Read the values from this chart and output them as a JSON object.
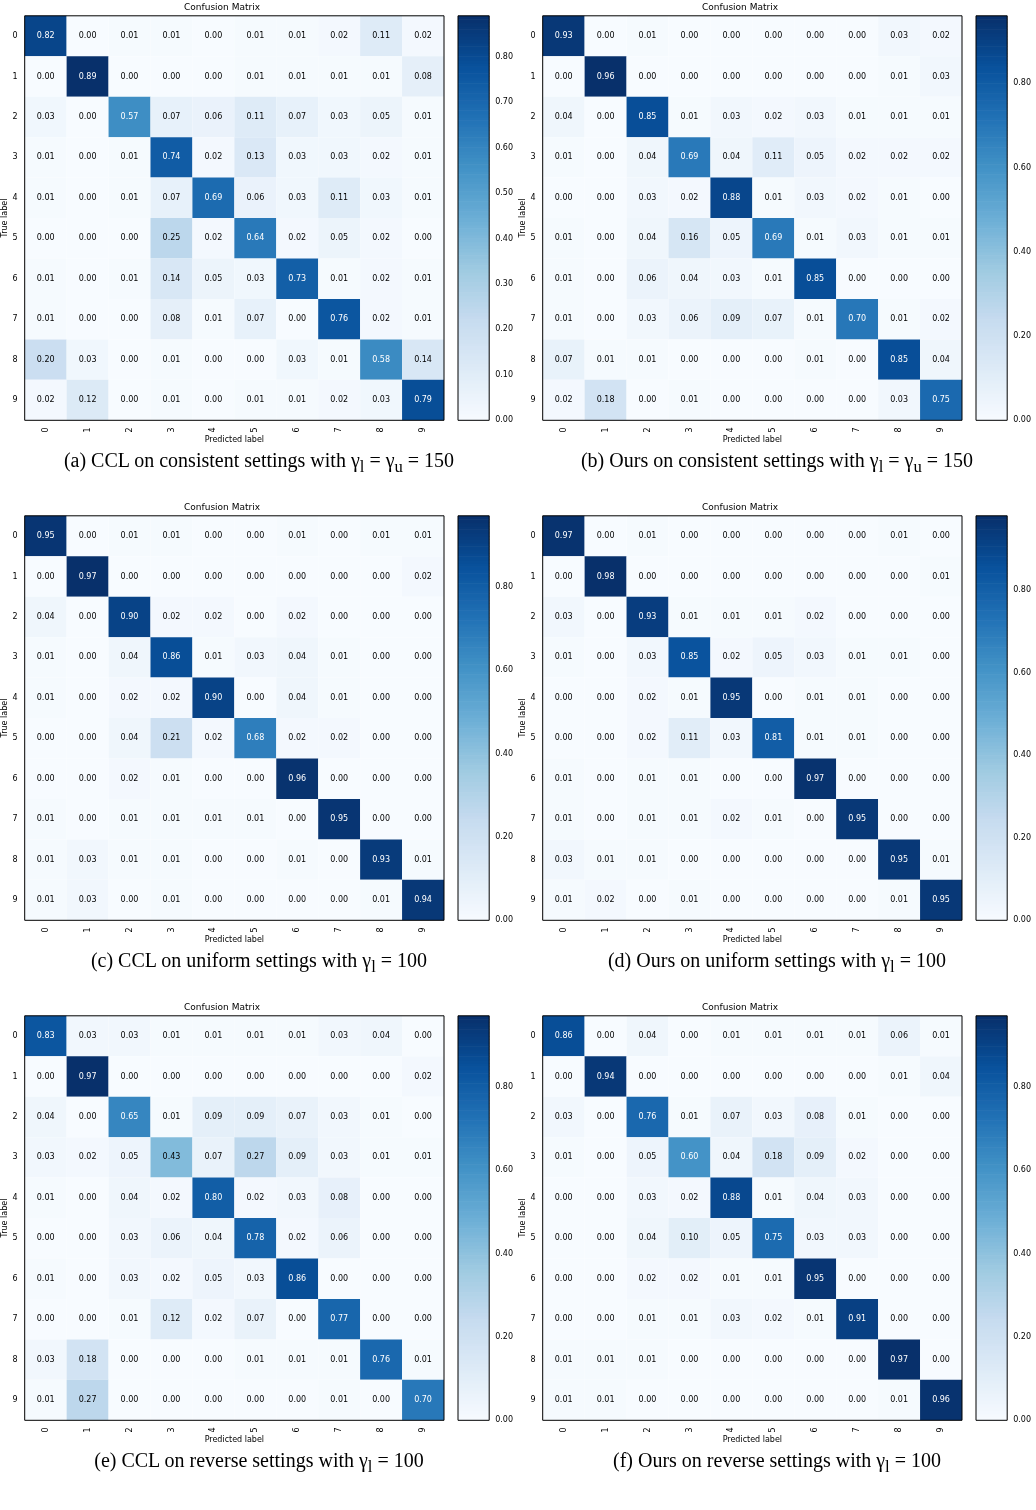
{
  "chart_data": [
    {
      "type": "heatmap",
      "title": "Confusion Matrix",
      "xlabel": "Predicted label",
      "ylabel": "True label",
      "categories": [
        "0",
        "1",
        "2",
        "3",
        "4",
        "5",
        "6",
        "7",
        "8",
        "9"
      ],
      "y_categories": [
        "0",
        "1",
        "2",
        "3",
        "4",
        "5",
        "6",
        "7",
        "8",
        "9"
      ],
      "clim": [
        0,
        0.89
      ],
      "cticks": [
        {
          "value": 0,
          "label": "0.00"
        },
        {
          "value": 0.1,
          "label": "0.10"
        },
        {
          "value": 0.2,
          "label": "0.20"
        },
        {
          "value": 0.3,
          "label": "0.30"
        },
        {
          "value": 0.4,
          "label": "0.40"
        },
        {
          "value": 0.5,
          "label": "0.50"
        },
        {
          "value": 0.6,
          "label": "0.60"
        },
        {
          "value": 0.7,
          "label": "0.70"
        },
        {
          "value": 0.8,
          "label": "0.80"
        }
      ],
      "annotations": [
        "(a)  CCL on consistent settings with γ$_{l}$ = γ$_{u}$ = 150"
      ],
      "cells": [
        [
          0.82,
          0,
          0.01,
          0.01,
          0,
          0.01,
          0.01,
          0.02,
          0.11,
          0.02
        ],
        [
          0,
          0.89,
          0,
          0,
          0,
          0.01,
          0.01,
          0.01,
          0.01,
          0.08
        ],
        [
          0.03,
          0,
          0.57,
          0.07,
          0.06,
          0.11,
          0.07,
          0.03,
          0.05,
          0.01
        ],
        [
          0.01,
          0,
          0.01,
          0.74,
          0.02,
          0.13,
          0.03,
          0.03,
          0.02,
          0.01
        ],
        [
          0.01,
          0,
          0.01,
          0.07,
          0.69,
          0.06,
          0.03,
          0.11,
          0.03,
          0.01
        ],
        [
          0,
          0,
          0,
          0.25,
          0.02,
          0.64,
          0.02,
          0.05,
          0.02,
          0
        ],
        [
          0.01,
          0,
          0.01,
          0.14,
          0.05,
          0.03,
          0.73,
          0.01,
          0.02,
          0.01
        ],
        [
          0.01,
          0,
          0,
          0.08,
          0.01,
          0.07,
          0,
          0.76,
          0.02,
          0.01
        ],
        [
          0.2,
          0.03,
          0,
          0.01,
          0,
          0,
          0.03,
          0.01,
          0.58,
          0.14
        ],
        [
          0.02,
          0.12,
          0,
          0.01,
          0,
          0.01,
          0.01,
          0.02,
          0.03,
          0.79
        ]
      ],
      "cell_labels": [
        [
          "0.82",
          "0.00",
          "0.01",
          "0.01",
          "0.00",
          "0.01",
          "0.01",
          "0.02",
          "0.11",
          "0.02"
        ],
        [
          "0.00",
          "0.89",
          "0.00",
          "0.00",
          "0.00",
          "0.01",
          "0.01",
          "0.01",
          "0.01",
          "0.08"
        ],
        [
          "0.03",
          "0.00",
          "0.57",
          "0.07",
          "0.06",
          "0.11",
          "0.07",
          "0.03",
          "0.05",
          "0.01"
        ],
        [
          "0.01",
          "0.00",
          "0.01",
          "0.74",
          "0.02",
          "0.13",
          "0.03",
          "0.03",
          "0.02",
          "0.01"
        ],
        [
          "0.01",
          "0.00",
          "0.01",
          "0.07",
          "0.69",
          "0.06",
          "0.03",
          "0.11",
          "0.03",
          "0.01"
        ],
        [
          "0.00",
          "0.00",
          "0.00",
          "0.25",
          "0.02",
          "0.64",
          "0.02",
          "0.05",
          "0.02",
          "0.00"
        ],
        [
          "0.01",
          "0.00",
          "0.01",
          "0.14",
          "0.05",
          "0.03",
          "0.73",
          "0.01",
          "0.02",
          "0.01"
        ],
        [
          "0.01",
          "0.00",
          "0.00",
          "0.08",
          "0.01",
          "0.07",
          "0.00",
          "0.76",
          "0.02",
          "0.01"
        ],
        [
          "0.20",
          "0.03",
          "0.00",
          "0.01",
          "0.00",
          "0.00",
          "0.03",
          "0.01",
          "0.58",
          "0.14"
        ],
        [
          "0.02",
          "0.12",
          "0.00",
          "0.01",
          "0.00",
          "0.01",
          "0.01",
          "0.02",
          "0.03",
          "0.79"
        ]
      ]
    },
    {
      "type": "heatmap",
      "title": "Confusion Matrix",
      "xlabel": "Predicted label",
      "ylabel": "True label",
      "categories": [
        "0",
        "1",
        "2",
        "3",
        "4",
        "5",
        "6",
        "7",
        "8",
        "9"
      ],
      "y_categories": [
        "0",
        "1",
        "2",
        "3",
        "4",
        "5",
        "6",
        "7",
        "8",
        "9"
      ],
      "clim": [
        0,
        0.96
      ],
      "cticks": [
        {
          "value": 0,
          "label": "0.00"
        },
        {
          "value": 0.2,
          "label": "0.20"
        },
        {
          "value": 0.4,
          "label": "0.40"
        },
        {
          "value": 0.6,
          "label": "0.60"
        },
        {
          "value": 0.8,
          "label": "0.80"
        }
      ],
      "annotations": [
        "(b)  Ours on consistent settings with γ$_{l}$ = γ$_{u}$ = 150"
      ],
      "cells": [
        [
          0.93,
          0,
          0.01,
          0,
          0,
          0,
          0,
          0,
          0.03,
          0.02
        ],
        [
          0,
          0.96,
          0,
          0,
          0,
          0,
          0,
          0,
          0.01,
          0.03
        ],
        [
          0.04,
          0,
          0.85,
          0.01,
          0.03,
          0.02,
          0.03,
          0.01,
          0.01,
          0.01
        ],
        [
          0.01,
          0,
          0.04,
          0.69,
          0.04,
          0.11,
          0.05,
          0.02,
          0.02,
          0.02
        ],
        [
          0,
          0,
          0.03,
          0.02,
          0.88,
          0.01,
          0.03,
          0.02,
          0.01,
          0
        ],
        [
          0.01,
          0,
          0.04,
          0.16,
          0.05,
          0.69,
          0.01,
          0.03,
          0.01,
          0.01
        ],
        [
          0.01,
          0,
          0.06,
          0.04,
          0.03,
          0.01,
          0.85,
          0,
          0,
          0
        ],
        [
          0.01,
          0,
          0.03,
          0.06,
          0.09,
          0.07,
          0.01,
          0.7,
          0.01,
          0.02
        ],
        [
          0.07,
          0.01,
          0.01,
          0,
          0,
          0,
          0.01,
          0,
          0.85,
          0.04
        ],
        [
          0.02,
          0.18,
          0,
          0.01,
          0,
          0,
          0,
          0,
          0.03,
          0.75
        ]
      ],
      "cell_labels": [
        [
          "0.93",
          "0.00",
          "0.01",
          "0.00",
          "0.00",
          "0.00",
          "0.00",
          "0.00",
          "0.03",
          "0.02"
        ],
        [
          "0.00",
          "0.96",
          "0.00",
          "0.00",
          "0.00",
          "0.00",
          "0.00",
          "0.00",
          "0.01",
          "0.03"
        ],
        [
          "0.04",
          "0.00",
          "0.85",
          "0.01",
          "0.03",
          "0.02",
          "0.03",
          "0.01",
          "0.01",
          "0.01"
        ],
        [
          "0.01",
          "0.00",
          "0.04",
          "0.69",
          "0.04",
          "0.11",
          "0.05",
          "0.02",
          "0.02",
          "0.02"
        ],
        [
          "0.00",
          "0.00",
          "0.03",
          "0.02",
          "0.88",
          "0.01",
          "0.03",
          "0.02",
          "0.01",
          "0.00"
        ],
        [
          "0.01",
          "0.00",
          "0.04",
          "0.16",
          "0.05",
          "0.69",
          "0.01",
          "0.03",
          "0.01",
          "0.01"
        ],
        [
          "0.01",
          "0.00",
          "0.06",
          "0.04",
          "0.03",
          "0.01",
          "0.85",
          "0.00",
          "0.00",
          "0.00"
        ],
        [
          "0.01",
          "0.00",
          "0.03",
          "0.06",
          "0.09",
          "0.07",
          "0.01",
          "0.70",
          "0.01",
          "0.02"
        ],
        [
          "0.07",
          "0.01",
          "0.01",
          "0.00",
          "0.00",
          "0.00",
          "0.01",
          "0.00",
          "0.85",
          "0.04"
        ],
        [
          "0.02",
          "0.18",
          "0.00",
          "0.01",
          "0.00",
          "0.00",
          "0.00",
          "0.00",
          "0.03",
          "0.75"
        ]
      ]
    },
    {
      "type": "heatmap",
      "title": "Confusion Matrix",
      "xlabel": "Predicted label",
      "ylabel": "True label",
      "categories": [
        "0",
        "1",
        "2",
        "3",
        "4",
        "5",
        "6",
        "7",
        "8",
        "9"
      ],
      "y_categories": [
        "0",
        "1",
        "2",
        "3",
        "4",
        "5",
        "6",
        "7",
        "8",
        "9"
      ],
      "clim": [
        0,
        0.97
      ],
      "cticks": [
        {
          "value": 0,
          "label": "0.00"
        },
        {
          "value": 0.2,
          "label": "0.20"
        },
        {
          "value": 0.4,
          "label": "0.40"
        },
        {
          "value": 0.6,
          "label": "0.60"
        },
        {
          "value": 0.8,
          "label": "0.80"
        }
      ],
      "annotations": [
        "(c)  CCL on uniform settings with γ$_{l}$ = 100"
      ],
      "cells": [
        [
          0.95,
          0,
          0.01,
          0.01,
          0,
          0,
          0.01,
          0,
          0.01,
          0.01
        ],
        [
          0,
          0.97,
          0,
          0,
          0,
          0,
          0,
          0,
          0,
          0.02
        ],
        [
          0.04,
          0,
          0.9,
          0.02,
          0.02,
          0,
          0.02,
          0,
          0,
          0
        ],
        [
          0.01,
          0,
          0.04,
          0.86,
          0.01,
          0.03,
          0.04,
          0.01,
          0,
          0
        ],
        [
          0.01,
          0,
          0.02,
          0.02,
          0.9,
          0,
          0.04,
          0.01,
          0,
          0
        ],
        [
          0,
          0,
          0.04,
          0.21,
          0.02,
          0.68,
          0.02,
          0.02,
          0,
          0
        ],
        [
          0,
          0,
          0.02,
          0.01,
          0,
          0,
          0.96,
          0,
          0,
          0
        ],
        [
          0.01,
          0,
          0.01,
          0.01,
          0.01,
          0.01,
          0,
          0.95,
          0,
          0
        ],
        [
          0.01,
          0.03,
          0.01,
          0.01,
          0,
          0,
          0.01,
          0,
          0.93,
          0.01
        ],
        [
          0.01,
          0.03,
          0,
          0.01,
          0,
          0,
          0,
          0,
          0.01,
          0.94
        ]
      ],
      "cell_labels": [
        [
          "0.95",
          "0.00",
          "0.01",
          "0.01",
          "0.00",
          "0.00",
          "0.01",
          "0.00",
          "0.01",
          "0.01"
        ],
        [
          "0.00",
          "0.97",
          "0.00",
          "0.00",
          "0.00",
          "0.00",
          "0.00",
          "0.00",
          "0.00",
          "0.02"
        ],
        [
          "0.04",
          "0.00",
          "0.90",
          "0.02",
          "0.02",
          "0.00",
          "0.02",
          "0.00",
          "0.00",
          "0.00"
        ],
        [
          "0.01",
          "0.00",
          "0.04",
          "0.86",
          "0.01",
          "0.03",
          "0.04",
          "0.01",
          "0.00",
          "0.00"
        ],
        [
          "0.01",
          "0.00",
          "0.02",
          "0.02",
          "0.90",
          "0.00",
          "0.04",
          "0.01",
          "0.00",
          "0.00"
        ],
        [
          "0.00",
          "0.00",
          "0.04",
          "0.21",
          "0.02",
          "0.68",
          "0.02",
          "0.02",
          "0.00",
          "0.00"
        ],
        [
          "0.00",
          "0.00",
          "0.02",
          "0.01",
          "0.00",
          "0.00",
          "0.96",
          "0.00",
          "0.00",
          "0.00"
        ],
        [
          "0.01",
          "0.00",
          "0.01",
          "0.01",
          "0.01",
          "0.01",
          "0.00",
          "0.95",
          "0.00",
          "0.00"
        ],
        [
          "0.01",
          "0.03",
          "0.01",
          "0.01",
          "0.00",
          "0.00",
          "0.01",
          "0.00",
          "0.93",
          "0.01"
        ],
        [
          "0.01",
          "0.03",
          "0.00",
          "0.01",
          "0.00",
          "0.00",
          "0.00",
          "0.00",
          "0.01",
          "0.94"
        ]
      ]
    },
    {
      "type": "heatmap",
      "title": "Confusion Matrix",
      "xlabel": "Predicted label",
      "ylabel": "True label",
      "categories": [
        "0",
        "1",
        "2",
        "3",
        "4",
        "5",
        "6",
        "7",
        "8",
        "9"
      ],
      "y_categories": [
        "0",
        "1",
        "2",
        "3",
        "4",
        "5",
        "6",
        "7",
        "8",
        "9"
      ],
      "clim": [
        0,
        0.98
      ],
      "cticks": [
        {
          "value": 0,
          "label": "0.00"
        },
        {
          "value": 0.2,
          "label": "0.20"
        },
        {
          "value": 0.4,
          "label": "0.40"
        },
        {
          "value": 0.6,
          "label": "0.60"
        },
        {
          "value": 0.8,
          "label": "0.80"
        }
      ],
      "annotations": [
        "(d)  Ours on uniform settings with γ$_{l}$ = 100"
      ],
      "cells": [
        [
          0.97,
          0,
          0.01,
          0,
          0,
          0,
          0,
          0,
          0.01,
          0
        ],
        [
          0,
          0.98,
          0,
          0,
          0,
          0,
          0,
          0,
          0,
          0.01
        ],
        [
          0.03,
          0,
          0.93,
          0.01,
          0.01,
          0.01,
          0.02,
          0,
          0,
          0
        ],
        [
          0.01,
          0,
          0.03,
          0.85,
          0.02,
          0.05,
          0.03,
          0.01,
          0.01,
          0
        ],
        [
          0,
          0,
          0.02,
          0.01,
          0.95,
          0,
          0.01,
          0.01,
          0,
          0
        ],
        [
          0,
          0,
          0.02,
          0.11,
          0.03,
          0.81,
          0.01,
          0.01,
          0,
          0
        ],
        [
          0.01,
          0,
          0.01,
          0.01,
          0,
          0,
          0.97,
          0,
          0,
          0
        ],
        [
          0.01,
          0,
          0.01,
          0.01,
          0.02,
          0.01,
          0,
          0.95,
          0,
          0
        ],
        [
          0.03,
          0.01,
          0.01,
          0,
          0,
          0,
          0,
          0,
          0.95,
          0.01
        ],
        [
          0.01,
          0.02,
          0,
          0.01,
          0,
          0,
          0,
          0,
          0.01,
          0.95
        ]
      ],
      "cell_labels": [
        [
          "0.97",
          "0.00",
          "0.01",
          "0.00",
          "0.00",
          "0.00",
          "0.00",
          "0.00",
          "0.01",
          "0.00"
        ],
        [
          "0.00",
          "0.98",
          "0.00",
          "0.00",
          "0.00",
          "0.00",
          "0.00",
          "0.00",
          "0.00",
          "0.01"
        ],
        [
          "0.03",
          "0.00",
          "0.93",
          "0.01",
          "0.01",
          "0.01",
          "0.02",
          "0.00",
          "0.00",
          "0.00"
        ],
        [
          "0.01",
          "0.00",
          "0.03",
          "0.85",
          "0.02",
          "0.05",
          "0.03",
          "0.01",
          "0.01",
          "0.00"
        ],
        [
          "0.00",
          "0.00",
          "0.02",
          "0.01",
          "0.95",
          "0.00",
          "0.01",
          "0.01",
          "0.00",
          "0.00"
        ],
        [
          "0.00",
          "0.00",
          "0.02",
          "0.11",
          "0.03",
          "0.81",
          "0.01",
          "0.01",
          "0.00",
          "0.00"
        ],
        [
          "0.01",
          "0.00",
          "0.01",
          "0.01",
          "0.00",
          "0.00",
          "0.97",
          "0.00",
          "0.00",
          "0.00"
        ],
        [
          "0.01",
          "0.00",
          "0.01",
          "0.01",
          "0.02",
          "0.01",
          "0.00",
          "0.95",
          "0.00",
          "0.00"
        ],
        [
          "0.03",
          "0.01",
          "0.01",
          "0.00",
          "0.00",
          "0.00",
          "0.00",
          "0.00",
          "0.95",
          "0.01"
        ],
        [
          "0.01",
          "0.02",
          "0.00",
          "0.01",
          "0.00",
          "0.00",
          "0.00",
          "0.00",
          "0.01",
          "0.95"
        ]
      ]
    },
    {
      "type": "heatmap",
      "title": "Confusion Matrix",
      "xlabel": "Predicted label",
      "ylabel": "True label",
      "categories": [
        "0",
        "1",
        "2",
        "3",
        "4",
        "5",
        "6",
        "7",
        "8",
        "9"
      ],
      "y_categories": [
        "0",
        "1",
        "2",
        "3",
        "4",
        "5",
        "6",
        "7",
        "8",
        "9"
      ],
      "clim": [
        0,
        0.97
      ],
      "cticks": [
        {
          "value": 0,
          "label": "0.00"
        },
        {
          "value": 0.2,
          "label": "0.20"
        },
        {
          "value": 0.4,
          "label": "0.40"
        },
        {
          "value": 0.6,
          "label": "0.60"
        },
        {
          "value": 0.8,
          "label": "0.80"
        }
      ],
      "annotations": [
        "(e)  CCL on reverse settings with γ$_{l}$ = 100"
      ],
      "cells": [
        [
          0.83,
          0.03,
          0.03,
          0.01,
          0.01,
          0.01,
          0.01,
          0.03,
          0.04,
          0
        ],
        [
          0,
          0.97,
          0,
          0,
          0,
          0,
          0,
          0,
          0,
          0.02
        ],
        [
          0.04,
          0,
          0.65,
          0.01,
          0.09,
          0.09,
          0.07,
          0.03,
          0.01,
          0
        ],
        [
          0.03,
          0.02,
          0.05,
          0.43,
          0.07,
          0.27,
          0.09,
          0.03,
          0.01,
          0.01
        ],
        [
          0.01,
          0,
          0.04,
          0.02,
          0.8,
          0.02,
          0.03,
          0.08,
          0,
          0
        ],
        [
          0,
          0,
          0.03,
          0.06,
          0.04,
          0.78,
          0.02,
          0.06,
          0,
          0
        ],
        [
          0.01,
          0,
          0.03,
          0.02,
          0.05,
          0.03,
          0.86,
          0,
          0,
          0
        ],
        [
          0,
          0,
          0.01,
          0.12,
          0.02,
          0.07,
          0,
          0.77,
          0,
          0
        ],
        [
          0.03,
          0.18,
          0,
          0,
          0,
          0.01,
          0.01,
          0.01,
          0.76,
          0.01
        ],
        [
          0.01,
          0.27,
          0,
          0,
          0,
          0,
          0,
          0.01,
          0,
          0.7
        ]
      ],
      "cell_labels": [
        [
          "0.83",
          "0.03",
          "0.03",
          "0.01",
          "0.01",
          "0.01",
          "0.01",
          "0.03",
          "0.04",
          "0.00"
        ],
        [
          "0.00",
          "0.97",
          "0.00",
          "0.00",
          "0.00",
          "0.00",
          "0.00",
          "0.00",
          "0.00",
          "0.02"
        ],
        [
          "0.04",
          "0.00",
          "0.65",
          "0.01",
          "0.09",
          "0.09",
          "0.07",
          "0.03",
          "0.01",
          "0.00"
        ],
        [
          "0.03",
          "0.02",
          "0.05",
          "0.43",
          "0.07",
          "0.27",
          "0.09",
          "0.03",
          "0.01",
          "0.01"
        ],
        [
          "0.01",
          "0.00",
          "0.04",
          "0.02",
          "0.80",
          "0.02",
          "0.03",
          "0.08",
          "0.00",
          "0.00"
        ],
        [
          "0.00",
          "0.00",
          "0.03",
          "0.06",
          "0.04",
          "0.78",
          "0.02",
          "0.06",
          "0.00",
          "0.00"
        ],
        [
          "0.01",
          "0.00",
          "0.03",
          "0.02",
          "0.05",
          "0.03",
          "0.86",
          "0.00",
          "0.00",
          "0.00"
        ],
        [
          "0.00",
          "0.00",
          "0.01",
          "0.12",
          "0.02",
          "0.07",
          "0.00",
          "0.77",
          "0.00",
          "0.00"
        ],
        [
          "0.03",
          "0.18",
          "0.00",
          "0.00",
          "0.00",
          "0.01",
          "0.01",
          "0.01",
          "0.76",
          "0.01"
        ],
        [
          "0.01",
          "0.27",
          "0.00",
          "0.00",
          "0.00",
          "0.00",
          "0.00",
          "0.01",
          "0.00",
          "0.70"
        ]
      ]
    },
    {
      "type": "heatmap",
      "title": "Confusion Matrix",
      "xlabel": "Predicted label",
      "ylabel": "True label",
      "categories": [
        "0",
        "1",
        "2",
        "3",
        "4",
        "5",
        "6",
        "7",
        "8",
        "9"
      ],
      "y_categories": [
        "0",
        "1",
        "2",
        "3",
        "4",
        "5",
        "6",
        "7",
        "8",
        "9"
      ],
      "clim": [
        0,
        0.97
      ],
      "cticks": [
        {
          "value": 0,
          "label": "0.00"
        },
        {
          "value": 0.2,
          "label": "0.20"
        },
        {
          "value": 0.4,
          "label": "0.40"
        },
        {
          "value": 0.6,
          "label": "0.60"
        },
        {
          "value": 0.8,
          "label": "0.80"
        }
      ],
      "annotations": [
        "(f)  Ours on reverse settings with γ$_{l}$ = 100"
      ],
      "cells": [
        [
          0.86,
          0,
          0.04,
          0,
          0.01,
          0.01,
          0.01,
          0.01,
          0.06,
          0.01
        ],
        [
          0,
          0.94,
          0,
          0,
          0,
          0,
          0,
          0,
          0.01,
          0.04
        ],
        [
          0.03,
          0,
          0.76,
          0.01,
          0.07,
          0.03,
          0.08,
          0.01,
          0,
          0
        ],
        [
          0.01,
          0,
          0.05,
          0.6,
          0.04,
          0.18,
          0.09,
          0.02,
          0,
          0
        ],
        [
          0,
          0,
          0.03,
          0.02,
          0.88,
          0.01,
          0.04,
          0.03,
          0,
          0
        ],
        [
          0,
          0,
          0.04,
          0.1,
          0.05,
          0.75,
          0.03,
          0.03,
          0,
          0
        ],
        [
          0,
          0,
          0.02,
          0.02,
          0.01,
          0.01,
          0.95,
          0,
          0,
          0
        ],
        [
          0,
          0,
          0.01,
          0.01,
          0.03,
          0.02,
          0.01,
          0.91,
          0,
          0
        ],
        [
          0.01,
          0.01,
          0.01,
          0,
          0,
          0,
          0,
          0,
          0.97,
          0
        ],
        [
          0.01,
          0.01,
          0,
          0,
          0,
          0,
          0,
          0,
          0.01,
          0.96
        ]
      ],
      "cell_labels": [
        [
          "0.86",
          "0.00",
          "0.04",
          "0.00",
          "0.01",
          "0.01",
          "0.01",
          "0.01",
          "0.06",
          "0.01"
        ],
        [
          "0.00",
          "0.94",
          "0.00",
          "0.00",
          "0.00",
          "0.00",
          "0.00",
          "0.00",
          "0.01",
          "0.04"
        ],
        [
          "0.03",
          "0.00",
          "0.76",
          "0.01",
          "0.07",
          "0.03",
          "0.08",
          "0.01",
          "0.00",
          "0.00"
        ],
        [
          "0.01",
          "0.00",
          "0.05",
          "0.60",
          "0.04",
          "0.18",
          "0.09",
          "0.02",
          "0.00",
          "0.00"
        ],
        [
          "0.00",
          "0.00",
          "0.03",
          "0.02",
          "0.88",
          "0.01",
          "0.04",
          "0.03",
          "0.00",
          "0.00"
        ],
        [
          "0.00",
          "0.00",
          "0.04",
          "0.10",
          "0.05",
          "0.75",
          "0.03",
          "0.03",
          "0.00",
          "0.00"
        ],
        [
          "0.00",
          "0.00",
          "0.02",
          "0.02",
          "0.01",
          "0.01",
          "0.95",
          "0.00",
          "0.00",
          "0.00"
        ],
        [
          "0.00",
          "0.00",
          "0.01",
          "0.01",
          "0.03",
          "0.02",
          "0.01",
          "0.91",
          "0.00",
          "0.00"
        ],
        [
          "0.01",
          "0.01",
          "0.01",
          "0.00",
          "0.00",
          "0.00",
          "0.00",
          "0.00",
          "0.97",
          "0.00"
        ],
        [
          "0.01",
          "0.01",
          "0.00",
          "0.00",
          "0.00",
          "0.00",
          "0.00",
          "0.00",
          "0.01",
          "0.96"
        ]
      ]
    }
  ]
}
